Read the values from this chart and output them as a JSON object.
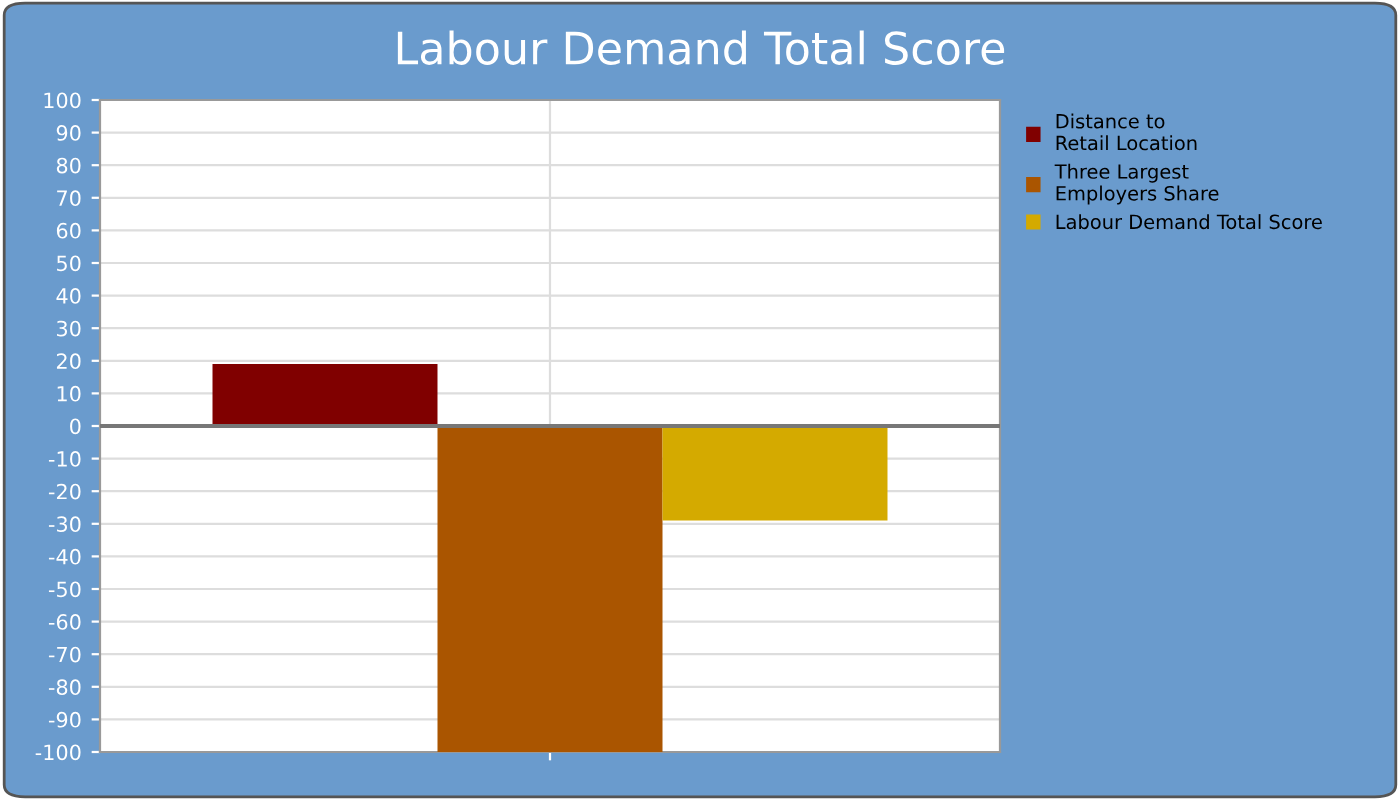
{
  "chart_data": {
    "type": "bar",
    "title": "Labour Demand Total Score",
    "categories": [
      null
    ],
    "series": [
      {
        "name": "Distance to\nRetail Location",
        "color": "#800000",
        "values": [
          19
        ]
      },
      {
        "name": "Three Largest\nEmployers Share",
        "color": "#aa5500",
        "values": [
          -100
        ]
      },
      {
        "name": "Labour Demand Total Score",
        "color": "#d4aa00",
        "values": [
          -29
        ]
      }
    ],
    "ylim": [
      -100,
      100
    ],
    "yticks": [
      -100,
      -90,
      -80,
      -70,
      -60,
      -50,
      -40,
      -30,
      -20,
      -10,
      0,
      10,
      20,
      30,
      40,
      50,
      60,
      70,
      80,
      90,
      100
    ],
    "ref_lines": [
      {
        "axis": "y",
        "value": 0,
        "color": "#777777"
      }
    ],
    "grid": true,
    "legend": "right"
  }
}
